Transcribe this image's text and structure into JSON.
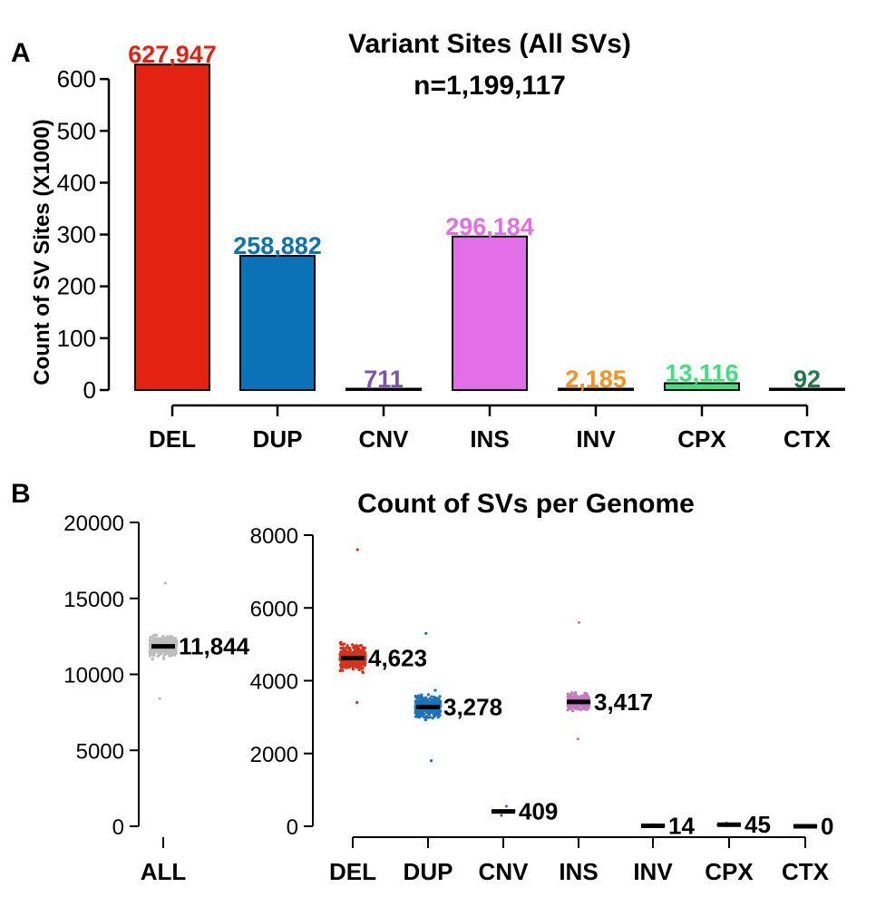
{
  "panel_a": {
    "letter": "A",
    "colors": [
      "#e32212",
      "#0c72b8",
      "#7a55b0",
      "#e36fe8",
      "#f5931e",
      "#3fe07e",
      "#1f7a48"
    ],
    "chart_data": {
      "type": "bar",
      "title": "Variant Sites (All SVs)",
      "subtitle": "n=1,199,117",
      "ylabel": "Count of SV Sites (X1000)",
      "xlabel": "",
      "ylim": [
        0,
        630
      ],
      "yticks": [
        "0",
        "100",
        "200",
        "300",
        "400",
        "500",
        "600"
      ],
      "categories": [
        "DEL",
        "DUP",
        "CNV",
        "INS",
        "INV",
        "CPX",
        "CTX"
      ],
      "values": [
        627.947,
        258.882,
        0.711,
        296.184,
        2.185,
        13.116,
        0.092
      ],
      "labels": [
        "627,947",
        "258,882",
        "711",
        "296,184",
        "2,185",
        "13,116",
        "92"
      ]
    }
  },
  "panel_b": {
    "letter": "B",
    "chart_data": {
      "type": "scatter",
      "title": "Count of SVs per Genome",
      "left": {
        "ylim": [
          0,
          20000
        ],
        "yticks": [
          "0",
          "5000",
          "10000",
          "15000",
          "20000"
        ],
        "categories": [
          "ALL"
        ],
        "medians": [
          11844
        ],
        "median_labels": [
          "11,844"
        ],
        "ranges": [
          [
            8400,
            16000
          ]
        ],
        "colors": [
          "#bdbdbd"
        ]
      },
      "right": {
        "ylim": [
          0,
          8000
        ],
        "yticks": [
          "0",
          "2000",
          "4000",
          "6000",
          "8000"
        ],
        "categories": [
          "DEL",
          "DUP",
          "CNV",
          "INS",
          "INV",
          "CPX",
          "CTX"
        ],
        "medians": [
          4623,
          3278,
          409,
          3417,
          14,
          45,
          0
        ],
        "median_labels": [
          "4,623",
          "3,278",
          "409",
          "3,417",
          "14",
          "45",
          "0"
        ],
        "ranges": [
          [
            3400,
            7600
          ],
          [
            1800,
            5300
          ],
          [
            300,
            550
          ],
          [
            2400,
            5600
          ],
          [
            0,
            40
          ],
          [
            20,
            80
          ],
          [
            0,
            5
          ]
        ],
        "colors": [
          "#d7311d",
          "#1b72b8",
          "#7058a8",
          "#c27bc0",
          "#000000",
          "#000000",
          "#000000"
        ]
      }
    }
  }
}
